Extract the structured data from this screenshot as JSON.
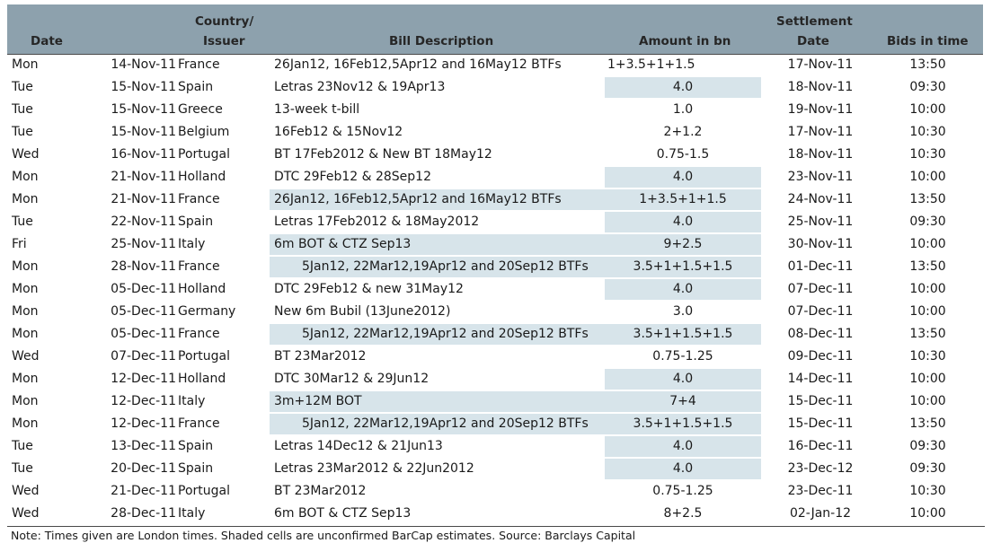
{
  "header": {
    "date": "Date",
    "country_line1": "Country/",
    "country_line2": "Issuer",
    "description": "Bill Description",
    "amount": "Amount in bn",
    "settlement_line1": "Settlement",
    "settlement_line2": "Date",
    "bids": "Bids in time"
  },
  "shade_color": "#d7e4ea",
  "header_color": "#8da1ad",
  "rows": [
    {
      "day": "Mon",
      "date": "14-Nov-11",
      "country": "France",
      "desc": "26Jan12, 16Feb12,5Apr12 and 16May12 BTFs",
      "amount": "1+3.5+1+1.5",
      "settlement": "17-Nov-11",
      "bids": "13:50",
      "desc_shaded": false,
      "amount_shaded": false,
      "indent": false,
      "amount_left": true
    },
    {
      "day": "Tue",
      "date": "15-Nov-11",
      "country": "Spain",
      "desc": "Letras 23Nov12 & 19Apr13",
      "amount": "4.0",
      "settlement": "18-Nov-11",
      "bids": "09:30",
      "desc_shaded": false,
      "amount_shaded": true,
      "indent": false,
      "amount_left": false
    },
    {
      "day": "Tue",
      "date": "15-Nov-11",
      "country": "Greece",
      "desc": "13-week t-bill",
      "amount": "1.0",
      "settlement": "19-Nov-11",
      "bids": "10:00",
      "desc_shaded": false,
      "amount_shaded": false,
      "indent": false,
      "amount_left": false
    },
    {
      "day": "Tue",
      "date": "15-Nov-11",
      "country": "Belgium",
      "desc": "16Feb12 & 15Nov12",
      "amount": "2+1.2",
      "settlement": "17-Nov-11",
      "bids": "10:30",
      "desc_shaded": false,
      "amount_shaded": false,
      "indent": false,
      "amount_left": false
    },
    {
      "day": "Wed",
      "date": "16-Nov-11",
      "country": "Portugal",
      "desc": "BT 17Feb2012 & New BT 18May12",
      "amount": "0.75-1.5",
      "settlement": "18-Nov-11",
      "bids": "10:30",
      "desc_shaded": false,
      "amount_shaded": false,
      "indent": false,
      "amount_left": false
    },
    {
      "day": "Mon",
      "date": "21-Nov-11",
      "country": "Holland",
      "desc": "DTC 29Feb12 & 28Sep12",
      "amount": "4.0",
      "settlement": "23-Nov-11",
      "bids": "10:00",
      "desc_shaded": false,
      "amount_shaded": true,
      "indent": false,
      "amount_left": false
    },
    {
      "day": "Mon",
      "date": "21-Nov-11",
      "country": "France",
      "desc": "26Jan12, 16Feb12,5Apr12 and 16May12 BTFs",
      "amount": "1+3.5+1+1.5",
      "settlement": "24-Nov-11",
      "bids": "13:50",
      "desc_shaded": true,
      "amount_shaded": true,
      "indent": false,
      "amount_left": false
    },
    {
      "day": "Tue",
      "date": "22-Nov-11",
      "country": "Spain",
      "desc": "Letras 17Feb2012 & 18May2012",
      "amount": "4.0",
      "settlement": "25-Nov-11",
      "bids": "09:30",
      "desc_shaded": false,
      "amount_shaded": true,
      "indent": false,
      "amount_left": false
    },
    {
      "day": "Fri",
      "date": "25-Nov-11",
      "country": "Italy",
      "desc": "6m  BOT & CTZ Sep13",
      "amount": "9+2.5",
      "settlement": "30-Nov-11",
      "bids": "10:00",
      "desc_shaded": true,
      "amount_shaded": true,
      "indent": false,
      "amount_left": false
    },
    {
      "day": "Mon",
      "date": "28-Nov-11",
      "country": "France",
      "desc": "5Jan12, 22Mar12,19Apr12 and 20Sep12 BTFs",
      "amount": "3.5+1+1.5+1.5",
      "settlement": "01-Dec-11",
      "bids": "13:50",
      "desc_shaded": true,
      "amount_shaded": true,
      "indent": true,
      "amount_left": false
    },
    {
      "day": "Mon",
      "date": "05-Dec-11",
      "country": "Holland",
      "desc": "DTC 29Feb12 & new 31May12",
      "amount": "4.0",
      "settlement": "07-Dec-11",
      "bids": "10:00",
      "desc_shaded": false,
      "amount_shaded": true,
      "indent": false,
      "amount_left": false
    },
    {
      "day": "Mon",
      "date": "05-Dec-11",
      "country": "Germany",
      "desc": "New 6m Bubil (13June2012)",
      "amount": "3.0",
      "settlement": "07-Dec-11",
      "bids": "10:00",
      "desc_shaded": false,
      "amount_shaded": false,
      "indent": false,
      "amount_left": false
    },
    {
      "day": "Mon",
      "date": "05-Dec-11",
      "country": "France",
      "desc": "5Jan12, 22Mar12,19Apr12 and 20Sep12 BTFs",
      "amount": "3.5+1+1.5+1.5",
      "settlement": "08-Dec-11",
      "bids": "13:50",
      "desc_shaded": true,
      "amount_shaded": true,
      "indent": true,
      "amount_left": false
    },
    {
      "day": "Wed",
      "date": "07-Dec-11",
      "country": "Portugal",
      "desc": "BT 23Mar2012",
      "amount": "0.75-1.25",
      "settlement": "09-Dec-11",
      "bids": "10:30",
      "desc_shaded": false,
      "amount_shaded": false,
      "indent": false,
      "amount_left": false
    },
    {
      "day": "Mon",
      "date": "12-Dec-11",
      "country": "Holland",
      "desc": "DTC 30Mar12 & 29Jun12",
      "amount": "4.0",
      "settlement": "14-Dec-11",
      "bids": "10:00",
      "desc_shaded": false,
      "amount_shaded": true,
      "indent": false,
      "amount_left": false
    },
    {
      "day": "Mon",
      "date": "12-Dec-11",
      "country": "Italy",
      "desc": "3m+12M BOT",
      "amount": "7+4",
      "settlement": "15-Dec-11",
      "bids": "10:00",
      "desc_shaded": true,
      "amount_shaded": true,
      "indent": false,
      "amount_left": false
    },
    {
      "day": "Mon",
      "date": "12-Dec-11",
      "country": "France",
      "desc": "5Jan12, 22Mar12,19Apr12 and 20Sep12 BTFs",
      "amount": "3.5+1+1.5+1.5",
      "settlement": "15-Dec-11",
      "bids": "13:50",
      "desc_shaded": true,
      "amount_shaded": true,
      "indent": true,
      "amount_left": false
    },
    {
      "day": "Tue",
      "date": "13-Dec-11",
      "country": "Spain",
      "desc": "Letras 14Dec12 & 21Jun13",
      "amount": "4.0",
      "settlement": "16-Dec-11",
      "bids": "09:30",
      "desc_shaded": false,
      "amount_shaded": true,
      "indent": false,
      "amount_left": false
    },
    {
      "day": "Tue",
      "date": "20-Dec-11",
      "country": "Spain",
      "desc": "Letras 23Mar2012 & 22Jun2012",
      "amount": "4.0",
      "settlement": "23-Dec-12",
      "bids": "09:30",
      "desc_shaded": false,
      "amount_shaded": true,
      "indent": false,
      "amount_left": false
    },
    {
      "day": "Wed",
      "date": "21-Dec-11",
      "country": "Portugal",
      "desc": "BT 23Mar2012",
      "amount": "0.75-1.25",
      "settlement": "23-Dec-11",
      "bids": "10:30",
      "desc_shaded": false,
      "amount_shaded": false,
      "indent": false,
      "amount_left": false
    },
    {
      "day": "Wed",
      "date": "28-Dec-11",
      "country": "Italy",
      "desc": "6m BOT & CTZ Sep13",
      "amount": "8+2.5",
      "settlement": "02-Jan-12",
      "bids": "10:00",
      "desc_shaded": false,
      "amount_shaded": false,
      "indent": false,
      "amount_left": false
    }
  ],
  "note": "Note: Times given are London times. Shaded cells are unconfirmed BarCap estimates. Source: Barclays Capital"
}
